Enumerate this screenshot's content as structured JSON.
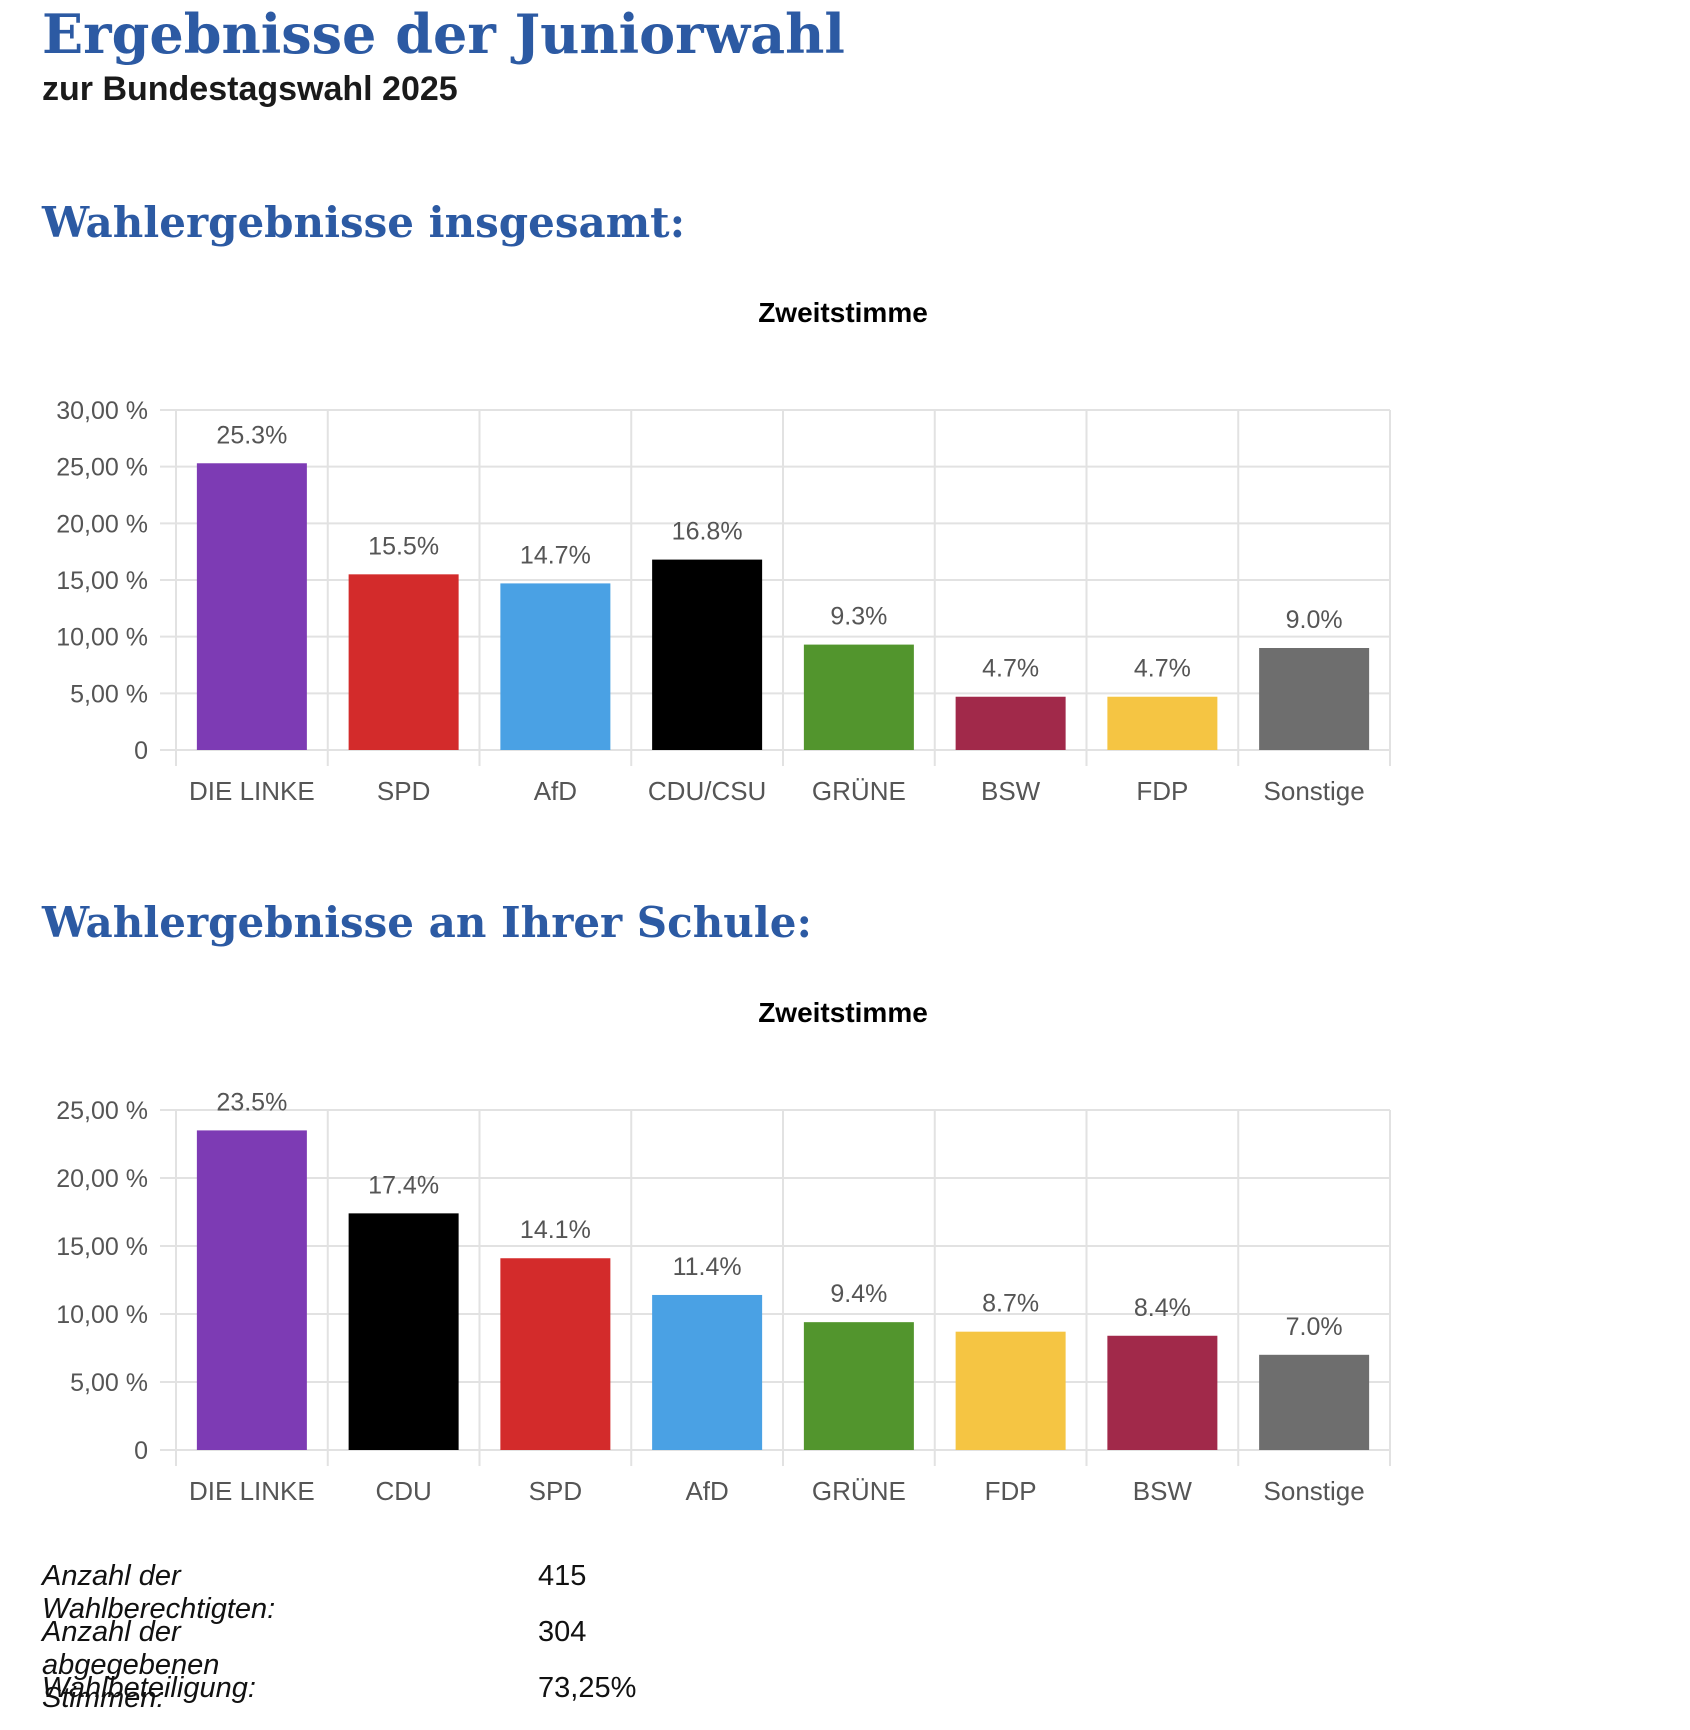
{
  "page": {
    "title": "Ergebnisse der Juniorwahl",
    "subtitle": "zur Bundestagswahl 2025"
  },
  "sections": {
    "total_heading": "Wahlergebnisse insgesamt:",
    "school_heading": "Wahlergebnisse an Ihrer Schule:"
  },
  "chart_data": [
    {
      "id": "chart-total",
      "type": "bar",
      "title": "Zweitstimme",
      "xlabel": "",
      "ylabel": "",
      "ylim": [
        0,
        30
      ],
      "yticks": [
        0,
        5,
        10,
        15,
        20,
        25,
        30
      ],
      "ytick_labels": [
        "0",
        "5,00 %",
        "10,00 %",
        "15,00 %",
        "20,00 %",
        "25,00 %",
        "30,00 %"
      ],
      "categories": [
        "DIE LINKE",
        "SPD",
        "AfD",
        "CDU/CSU",
        "GRÜNE",
        "BSW",
        "FDP",
        "Sonstige"
      ],
      "values": [
        25.3,
        15.5,
        14.7,
        16.8,
        9.3,
        4.7,
        4.7,
        9.0
      ],
      "data_labels": [
        "25.3%",
        "15.5%",
        "14.7%",
        "16.8%",
        "9.3%",
        "4.7%",
        "4.7%",
        "9.0%"
      ],
      "colors": [
        "#7d3bb4",
        "#d32b2b",
        "#4aa1e4",
        "#000000",
        "#52952d",
        "#a1294a",
        "#f5c543",
        "#6e6e6e"
      ],
      "grid": true,
      "legend": "none"
    },
    {
      "id": "chart-school",
      "type": "bar",
      "title": "Zweitstimme",
      "xlabel": "",
      "ylabel": "",
      "ylim": [
        0,
        25
      ],
      "yticks": [
        0,
        5,
        10,
        15,
        20,
        25
      ],
      "ytick_labels": [
        "0",
        "5,00 %",
        "10,00 %",
        "15,00 %",
        "20,00 %",
        "25,00 %"
      ],
      "categories": [
        "DIE LINKE",
        "CDU",
        "SPD",
        "AfD",
        "GRÜNE",
        "FDP",
        "BSW",
        "Sonstige"
      ],
      "values": [
        23.5,
        17.4,
        14.1,
        11.4,
        9.4,
        8.7,
        8.4,
        7.0
      ],
      "data_labels": [
        "23.5%",
        "17.4%",
        "14.1%",
        "11.4%",
        "9.4%",
        "8.7%",
        "8.4%",
        "7.0%"
      ],
      "colors": [
        "#7d3bb4",
        "#000000",
        "#d32b2b",
        "#4aa1e4",
        "#52952d",
        "#f5c543",
        "#a1294a",
        "#6e6e6e"
      ],
      "grid": true,
      "legend": "none"
    }
  ],
  "stats": [
    {
      "label": "Anzahl der Wahlberechtigten:",
      "value": "415"
    },
    {
      "label": "Anzahl der abgegebenen Stimmen:",
      "value": "304"
    },
    {
      "label": "Wahlbeteiligung:",
      "value": "73,25%"
    }
  ]
}
